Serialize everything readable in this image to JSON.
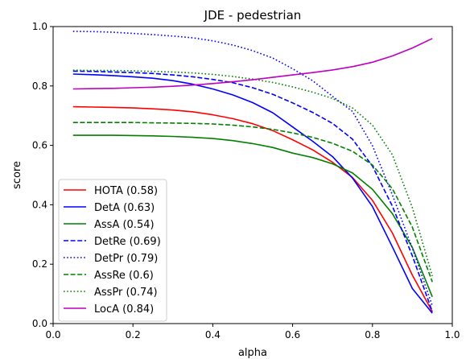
{
  "chart_data": {
    "type": "line",
    "title": "JDE - pedestrian",
    "xlabel": "alpha",
    "ylabel": "score",
    "xlim": [
      0.0,
      1.0
    ],
    "ylim": [
      0.0,
      1.0
    ],
    "xticks": [
      "0.0",
      "0.2",
      "0.4",
      "0.6",
      "0.8",
      "1.0"
    ],
    "yticks": [
      "0.0",
      "0.2",
      "0.4",
      "0.6",
      "0.8",
      "1.0"
    ],
    "grid": false,
    "legend_position": "lower-left",
    "x": [
      0.05,
      0.1,
      0.15,
      0.2,
      0.25,
      0.3,
      0.35,
      0.4,
      0.45,
      0.5,
      0.55,
      0.6,
      0.65,
      0.7,
      0.75,
      0.8,
      0.85,
      0.9,
      0.95
    ],
    "series": [
      {
        "name": "HOTA (0.58)",
        "color": "#ff0000",
        "dash": "solid",
        "values": [
          0.73,
          0.729,
          0.728,
          0.726,
          0.723,
          0.719,
          0.713,
          0.703,
          0.69,
          0.673,
          0.65,
          0.619,
          0.585,
          0.543,
          0.492,
          0.415,
          0.305,
          0.163,
          0.04
        ]
      },
      {
        "name": "DetA (0.63)",
        "color": "#0000ff",
        "dash": "solid",
        "values": [
          0.84,
          0.838,
          0.835,
          0.831,
          0.826,
          0.818,
          0.806,
          0.79,
          0.77,
          0.744,
          0.71,
          0.662,
          0.614,
          0.562,
          0.49,
          0.394,
          0.258,
          0.118,
          0.035
        ]
      },
      {
        "name": "AssA (0.54)",
        "color": "#008000",
        "dash": "solid",
        "values": [
          0.634,
          0.634,
          0.634,
          0.633,
          0.632,
          0.63,
          0.627,
          0.623,
          0.616,
          0.606,
          0.593,
          0.574,
          0.559,
          0.538,
          0.507,
          0.452,
          0.37,
          0.256,
          0.09
        ]
      },
      {
        "name": "DetRe (0.69)",
        "color": "#0000ff",
        "dash": "dashed",
        "values": [
          0.85,
          0.849,
          0.847,
          0.845,
          0.842,
          0.837,
          0.831,
          0.822,
          0.811,
          0.794,
          0.772,
          0.743,
          0.711,
          0.674,
          0.621,
          0.53,
          0.395,
          0.228,
          0.04
        ]
      },
      {
        "name": "DetPr (0.79)",
        "color": "#0000ff",
        "dash": "dotted",
        "values": [
          0.984,
          0.983,
          0.981,
          0.977,
          0.973,
          0.968,
          0.962,
          0.952,
          0.938,
          0.919,
          0.894,
          0.858,
          0.818,
          0.765,
          0.714,
          0.599,
          0.433,
          0.254,
          0.06
        ]
      },
      {
        "name": "AssRe (0.6)",
        "color": "#008000",
        "dash": "dashed",
        "values": [
          0.677,
          0.677,
          0.677,
          0.677,
          0.676,
          0.675,
          0.674,
          0.672,
          0.668,
          0.662,
          0.654,
          0.642,
          0.627,
          0.607,
          0.58,
          0.534,
          0.454,
          0.324,
          0.14
        ]
      },
      {
        "name": "AssPr (0.74)",
        "color": "#008000",
        "dash": "dotted",
        "values": [
          0.853,
          0.852,
          0.852,
          0.851,
          0.849,
          0.847,
          0.844,
          0.839,
          0.832,
          0.823,
          0.812,
          0.797,
          0.779,
          0.758,
          0.726,
          0.668,
          0.568,
          0.39,
          0.16
        ]
      },
      {
        "name": "LocA (0.84)",
        "color": "#bf00bf",
        "dash": "solid",
        "values": [
          0.79,
          0.791,
          0.792,
          0.794,
          0.796,
          0.799,
          0.803,
          0.808,
          0.814,
          0.821,
          0.829,
          0.837,
          0.845,
          0.854,
          0.865,
          0.88,
          0.901,
          0.928,
          0.96
        ]
      }
    ]
  }
}
